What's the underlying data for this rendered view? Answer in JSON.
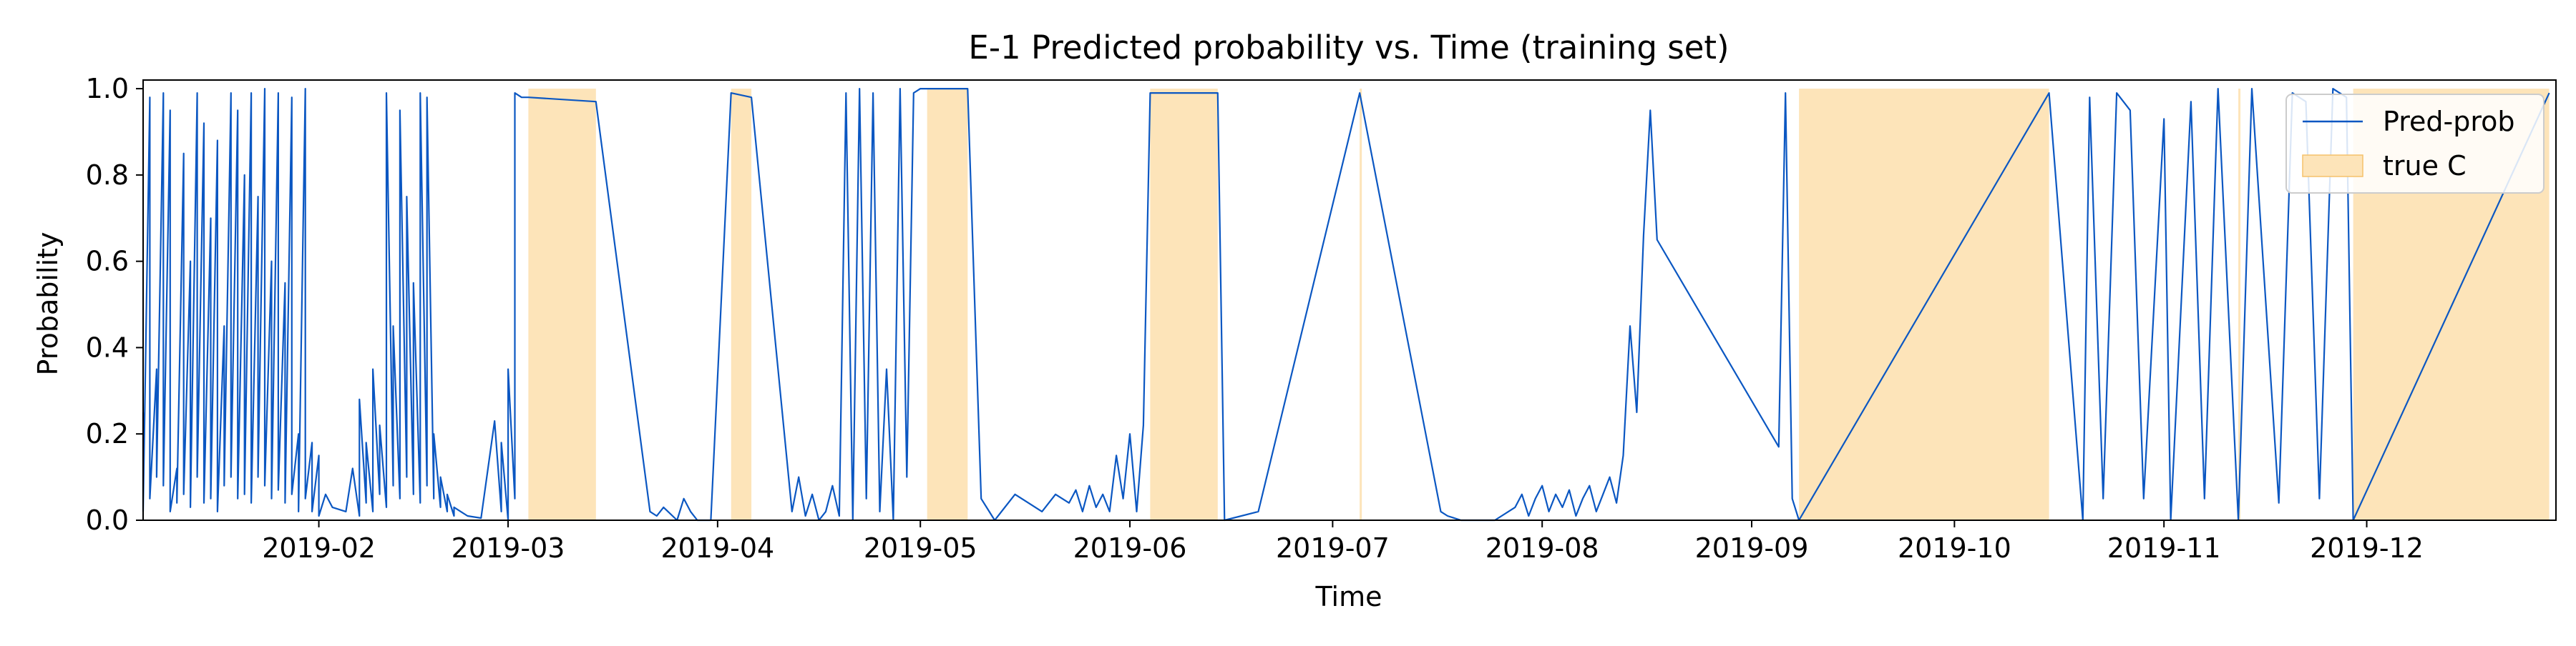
{
  "colors": {
    "line": "#0b57c2",
    "shade": "#fde4b9",
    "shade_edge": "#f5c26b",
    "axes": "#000000",
    "background": "#ffffff"
  },
  "chart_data": {
    "type": "line",
    "title": "E-1  Predicted probability vs. Time  (training set)",
    "xlabel": "Time",
    "ylabel": "Probability",
    "xlim": [
      "2019-01-06",
      "2019-12-28"
    ],
    "ylim": [
      0,
      1.02
    ],
    "xticks": [
      "2019-02",
      "2019-03",
      "2019-04",
      "2019-05",
      "2019-06",
      "2019-07",
      "2019-08",
      "2019-09",
      "2019-10",
      "2019-11",
      "2019-12"
    ],
    "yticks": [
      "0.0",
      "0.2",
      "0.4",
      "0.6",
      "0.8",
      "1.0"
    ],
    "grid": false,
    "legend": {
      "placement": "top-right",
      "entries": [
        {
          "label": "Pred-prob",
          "kind": "line"
        },
        {
          "label": "true C",
          "kind": "patch"
        }
      ]
    },
    "shaded_regions": [
      {
        "start": "2019-03-04",
        "end": "2019-03-14",
        "ymax": 1.0
      },
      {
        "start": "2019-04-03",
        "end": "2019-04-06",
        "ymax": 1.0
      },
      {
        "start": "2019-05-02",
        "end": "2019-05-08",
        "ymax": 1.0
      },
      {
        "start": "2019-06-04",
        "end": "2019-06-14",
        "ymax": 1.0
      },
      {
        "start": "2019-07-05",
        "end": "2019-07-05",
        "ymax": 1.0
      },
      {
        "start": "2019-09-08",
        "end": "2019-10-15",
        "ymax": 1.0
      },
      {
        "start": "2019-11-12",
        "end": "2019-11-12",
        "ymax": 1.0
      },
      {
        "start": "2019-11-29",
        "end": "2019-12-28",
        "ymax": 1.0
      }
    ],
    "series": [
      {
        "name": "Pred-prob",
        "x": [
          "2019-01-06",
          "2019-01-06",
          "2019-01-07",
          "2019-01-07",
          "2019-01-08",
          "2019-01-08",
          "2019-01-09",
          "2019-01-09",
          "2019-01-10",
          "2019-01-10",
          "2019-01-11",
          "2019-01-11",
          "2019-01-12",
          "2019-01-12",
          "2019-01-13",
          "2019-01-13",
          "2019-01-14",
          "2019-01-14",
          "2019-01-15",
          "2019-01-15",
          "2019-01-16",
          "2019-01-16",
          "2019-01-17",
          "2019-01-17",
          "2019-01-18",
          "2019-01-18",
          "2019-01-19",
          "2019-01-19",
          "2019-01-20",
          "2019-01-20",
          "2019-01-21",
          "2019-01-21",
          "2019-01-22",
          "2019-01-22",
          "2019-01-23",
          "2019-01-23",
          "2019-01-24",
          "2019-01-24",
          "2019-01-25",
          "2019-01-25",
          "2019-01-26",
          "2019-01-26",
          "2019-01-27",
          "2019-01-27",
          "2019-01-28",
          "2019-01-28",
          "2019-01-29",
          "2019-01-29",
          "2019-01-30",
          "2019-01-30",
          "2019-01-31",
          "2019-01-31",
          "2019-02-01",
          "2019-02-01",
          "2019-02-02",
          "2019-02-03",
          "2019-02-05",
          "2019-02-06",
          "2019-02-07",
          "2019-02-07",
          "2019-02-08",
          "2019-02-08",
          "2019-02-09",
          "2019-02-09",
          "2019-02-10",
          "2019-02-10",
          "2019-02-11",
          "2019-02-11",
          "2019-02-12",
          "2019-02-12",
          "2019-02-13",
          "2019-02-13",
          "2019-02-14",
          "2019-02-14",
          "2019-02-15",
          "2019-02-15",
          "2019-02-16",
          "2019-02-16",
          "2019-02-17",
          "2019-02-17",
          "2019-02-18",
          "2019-02-18",
          "2019-02-19",
          "2019-02-19",
          "2019-02-20",
          "2019-02-20",
          "2019-02-21",
          "2019-02-21",
          "2019-02-22",
          "2019-02-23",
          "2019-02-25",
          "2019-02-27",
          "2019-02-28",
          "2019-02-28",
          "2019-03-01",
          "2019-03-01",
          "2019-03-02",
          "2019-03-02",
          "2019-03-03",
          "2019-03-04",
          "2019-03-14",
          "2019-03-22",
          "2019-03-23",
          "2019-03-24",
          "2019-03-26",
          "2019-03-27",
          "2019-03-28",
          "2019-03-29",
          "2019-03-31",
          "2019-04-03",
          "2019-04-06",
          "2019-04-12",
          "2019-04-13",
          "2019-04-14",
          "2019-04-15",
          "2019-04-16",
          "2019-04-17",
          "2019-04-18",
          "2019-04-19",
          "2019-04-20",
          "2019-04-21",
          "2019-04-22",
          "2019-04-23",
          "2019-04-24",
          "2019-04-25",
          "2019-04-26",
          "2019-04-27",
          "2019-04-28",
          "2019-04-29",
          "2019-04-30",
          "2019-05-01",
          "2019-05-02",
          "2019-05-08",
          "2019-05-10",
          "2019-05-12",
          "2019-05-15",
          "2019-05-17",
          "2019-05-19",
          "2019-05-21",
          "2019-05-23",
          "2019-05-24",
          "2019-05-25",
          "2019-05-26",
          "2019-05-27",
          "2019-05-28",
          "2019-05-29",
          "2019-05-30",
          "2019-05-31",
          "2019-06-01",
          "2019-06-02",
          "2019-06-03",
          "2019-06-04",
          "2019-06-14",
          "2019-06-15",
          "2019-06-20",
          "2019-07-05",
          "2019-07-17",
          "2019-07-18",
          "2019-07-20",
          "2019-07-25",
          "2019-07-28",
          "2019-07-29",
          "2019-07-30",
          "2019-07-31",
          "2019-08-01",
          "2019-08-02",
          "2019-08-03",
          "2019-08-04",
          "2019-08-05",
          "2019-08-06",
          "2019-08-07",
          "2019-08-08",
          "2019-08-09",
          "2019-08-10",
          "2019-08-11",
          "2019-08-12",
          "2019-08-13",
          "2019-08-14",
          "2019-08-15",
          "2019-08-16",
          "2019-08-17",
          "2019-08-18",
          "2019-09-05",
          "2019-09-06",
          "2019-09-07",
          "2019-09-08",
          "2019-10-15",
          "2019-10-20",
          "2019-10-21",
          "2019-10-23",
          "2019-10-25",
          "2019-10-27",
          "2019-10-29",
          "2019-11-01",
          "2019-11-02",
          "2019-11-05",
          "2019-11-07",
          "2019-11-09",
          "2019-11-12",
          "2019-11-14",
          "2019-11-18",
          "2019-11-20",
          "2019-11-22",
          "2019-11-24",
          "2019-11-26",
          "2019-11-28",
          "2019-11-29",
          "2019-12-28"
        ],
        "values": [
          0.25,
          0.02,
          0.98,
          0.05,
          0.35,
          0.1,
          0.99,
          0.08,
          0.95,
          0.02,
          0.12,
          0.04,
          0.85,
          0.06,
          0.6,
          0.03,
          0.99,
          0.1,
          0.92,
          0.04,
          0.7,
          0.05,
          0.88,
          0.02,
          0.45,
          0.08,
          0.99,
          0.1,
          0.95,
          0.05,
          0.8,
          0.06,
          0.99,
          0.04,
          0.75,
          0.1,
          1.0,
          0.08,
          0.6,
          0.05,
          0.99,
          0.07,
          0.55,
          0.04,
          0.98,
          0.06,
          0.2,
          0.02,
          1.0,
          0.05,
          0.18,
          0.02,
          0.15,
          0.01,
          0.06,
          0.03,
          0.02,
          0.12,
          0.01,
          0.28,
          0.04,
          0.18,
          0.02,
          0.35,
          0.06,
          0.22,
          0.03,
          0.99,
          0.08,
          0.45,
          0.05,
          0.95,
          0.1,
          0.75,
          0.06,
          0.55,
          0.04,
          0.99,
          0.08,
          0.98,
          0.05,
          0.2,
          0.03,
          0.1,
          0.02,
          0.06,
          0.01,
          0.03,
          0.02,
          0.01,
          0.005,
          0.23,
          0.02,
          0.18,
          0.0,
          0.35,
          0.05,
          0.99,
          0.98,
          0.98,
          0.97,
          0.02,
          0.01,
          0.03,
          0.0,
          0.05,
          0.02,
          0.0,
          0.0,
          0.99,
          0.98,
          0.02,
          0.1,
          0.01,
          0.06,
          0.0,
          0.02,
          0.08,
          0.01,
          0.99,
          0.0,
          1.0,
          0.05,
          0.99,
          0.02,
          0.35,
          0.0,
          1.0,
          0.1,
          0.99,
          1.0,
          1.0,
          1.0,
          0.05,
          0.0,
          0.06,
          0.04,
          0.02,
          0.06,
          0.04,
          0.07,
          0.02,
          0.08,
          0.03,
          0.06,
          0.02,
          0.15,
          0.05,
          0.2,
          0.02,
          0.22,
          0.99,
          0.99,
          0.0,
          0.02,
          0.99,
          0.02,
          0.01,
          0.0,
          0.0,
          0.03,
          0.06,
          0.01,
          0.05,
          0.08,
          0.02,
          0.06,
          0.03,
          0.07,
          0.01,
          0.05,
          0.08,
          0.02,
          0.06,
          0.1,
          0.04,
          0.15,
          0.45,
          0.25,
          0.66,
          0.95,
          0.65,
          0.17,
          0.99,
          0.05,
          0.0,
          0.99,
          0.0,
          0.98,
          0.05,
          0.99,
          0.95,
          0.05,
          0.93,
          0.0,
          0.97,
          0.05,
          1.0,
          0.0,
          1.0,
          0.04,
          0.99,
          0.97,
          0.05,
          1.0,
          0.98,
          0.0,
          0.99
        ]
      }
    ]
  }
}
